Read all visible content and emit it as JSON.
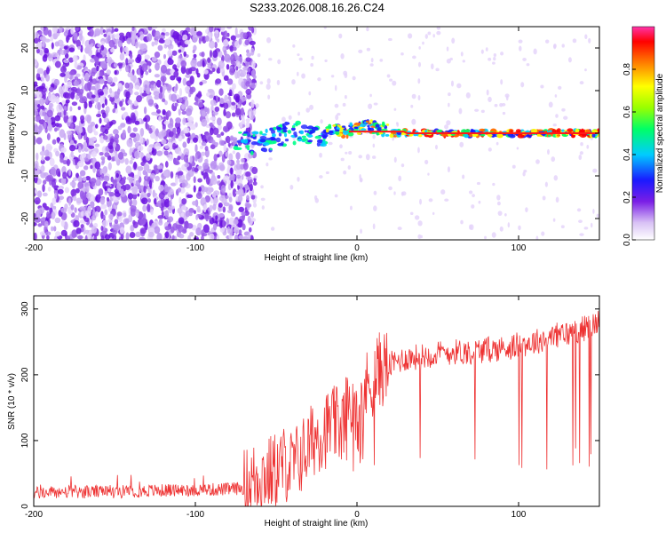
{
  "title": "S233.2026.008.16.26.C24",
  "colors": {
    "snr_line": "#ee3333",
    "axis": "#000000"
  },
  "chart_data": [
    {
      "type": "heatmap",
      "name": "spectrogram",
      "xlabel": "Height of straight line (km)",
      "ylabel": "Frequency (Hz)",
      "xlim": [
        -200,
        150
      ],
      "ylim": [
        -25,
        25
      ],
      "xticks": [
        -200,
        -100,
        0,
        100
      ],
      "yticks": [
        -20,
        -10,
        0,
        10,
        20
      ],
      "colorbar": {
        "label": "Normalized spectral amplitude",
        "range": [
          0,
          1
        ],
        "ticks": [
          0.0,
          0.2,
          0.4,
          0.6,
          0.8
        ],
        "colormap": "rainbow (white-purple-blue-cyan-green-yellow-red-magenta)"
      },
      "features": [
        {
          "region_x": [
            -200,
            -65
          ],
          "description": "broadband purple noise across all frequencies"
        },
        {
          "region_x": [
            -65,
            150
          ],
          "center_hz": 0,
          "description": "narrow high-amplitude band near 0 Hz (green to red)"
        }
      ]
    },
    {
      "type": "line",
      "name": "snr",
      "xlabel": "Height of straight line (km)",
      "ylabel": "SNR (10 * v/v)",
      "xlim": [
        -200,
        150
      ],
      "ylim": [
        0,
        320
      ],
      "xticks": [
        -200,
        -100,
        0,
        100
      ],
      "yticks": [
        0,
        100,
        200,
        300
      ],
      "series": [
        {
          "name": "SNR",
          "x": [
            -200,
            -180,
            -160,
            -140,
            -120,
            -100,
            -80,
            -70,
            -65,
            -60,
            -55,
            -50,
            -45,
            -40,
            -35,
            -30,
            -25,
            -20,
            -15,
            -10,
            -5,
            0,
            5,
            10,
            15,
            20,
            25,
            30,
            40,
            50,
            60,
            70,
            80,
            90,
            100,
            110,
            120,
            130,
            140,
            150
          ],
          "y": [
            20,
            22,
            22,
            23,
            24,
            25,
            26,
            28,
            38,
            50,
            48,
            55,
            65,
            60,
            75,
            90,
            110,
            115,
            125,
            120,
            150,
            160,
            175,
            195,
            210,
            215,
            220,
            225,
            228,
            232,
            235,
            235,
            238,
            240,
            245,
            250,
            258,
            262,
            270,
            280
          ]
        }
      ]
    }
  ]
}
